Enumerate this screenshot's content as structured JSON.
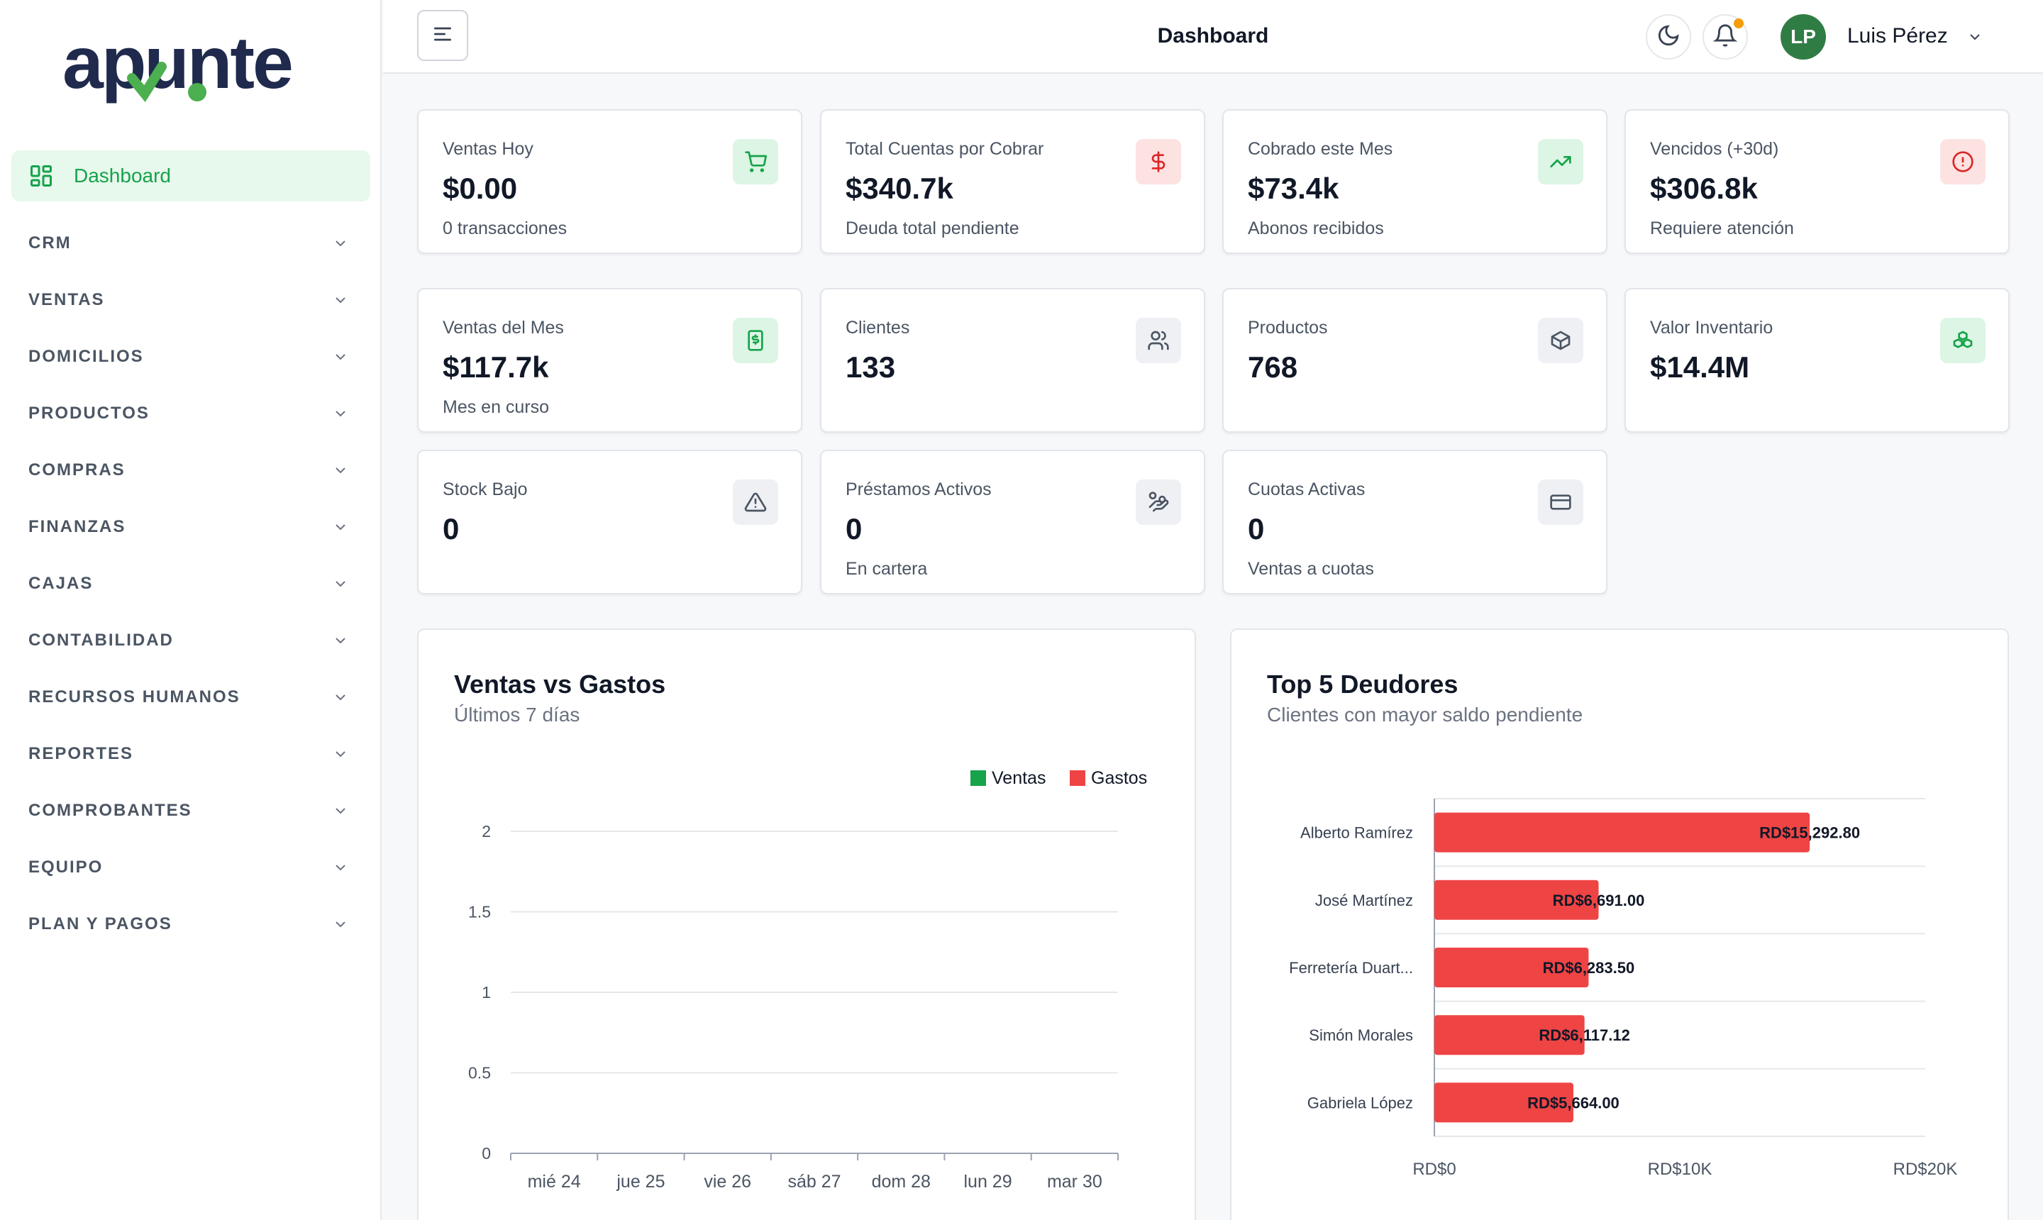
{
  "brand": {
    "logo_text": "apunte"
  },
  "sidebar": {
    "active": {
      "label": "Dashboard",
      "icon": "dashboard-grid-icon"
    },
    "items": [
      {
        "label": "CRM"
      },
      {
        "label": "VENTAS"
      },
      {
        "label": "DOMICILIOS"
      },
      {
        "label": "PRODUCTOS"
      },
      {
        "label": "COMPRAS"
      },
      {
        "label": "FINANZAS"
      },
      {
        "label": "CAJAS"
      },
      {
        "label": "CONTABILIDAD"
      },
      {
        "label": "RECURSOS HUMANOS"
      },
      {
        "label": "REPORTES"
      },
      {
        "label": "COMPROBANTES"
      },
      {
        "label": "EQUIPO"
      },
      {
        "label": "PLAN Y PAGOS"
      }
    ]
  },
  "header": {
    "title": "Dashboard",
    "user": {
      "initials": "LP",
      "name": "Luis Pérez"
    }
  },
  "stats": [
    {
      "label": "Ventas Hoy",
      "value": "$0.00",
      "sub": "0 transacciones",
      "icon": "cart-icon",
      "tone": "green"
    },
    {
      "label": "Total Cuentas por Cobrar",
      "value": "$340.7k",
      "sub": "Deuda total pendiente",
      "icon": "dollar-icon",
      "tone": "red"
    },
    {
      "label": "Cobrado este Mes",
      "value": "$73.4k",
      "sub": "Abonos recibidos",
      "icon": "trending-up-icon",
      "tone": "green"
    },
    {
      "label": "Vencidos (+30d)",
      "value": "$306.8k",
      "sub": "Requiere atención",
      "icon": "alert-circle-icon",
      "tone": "red"
    },
    {
      "label": "Ventas del Mes",
      "value": "$117.7k",
      "sub": "Mes en curso",
      "icon": "receipt-icon",
      "tone": "green"
    },
    {
      "label": "Clientes",
      "value": "133",
      "sub": "",
      "icon": "users-icon",
      "tone": "gray"
    },
    {
      "label": "Productos",
      "value": "768",
      "sub": "",
      "icon": "package-icon",
      "tone": "gray"
    },
    {
      "label": "Valor Inventario",
      "value": "$14.4M",
      "sub": "",
      "icon": "boxes-icon",
      "tone": "green"
    },
    {
      "label": "Stock Bajo",
      "value": "0",
      "sub": "",
      "icon": "warning-triangle-icon",
      "tone": "gray"
    },
    {
      "label": "Préstamos Activos",
      "value": "0",
      "sub": "En cartera",
      "icon": "hand-coins-icon",
      "tone": "gray"
    },
    {
      "label": "Cuotas Activas",
      "value": "0",
      "sub": "Ventas a cuotas",
      "icon": "credit-card-icon",
      "tone": "gray"
    }
  ],
  "panels": {
    "sales": {
      "title": "Ventas vs Gastos",
      "subtitle": "Últimos 7 días"
    },
    "debtors": {
      "title": "Top 5 Deudores",
      "subtitle": "Clientes con mayor saldo pendiente"
    }
  },
  "colors": {
    "accent": "#16a34a",
    "sales": "#16a34a",
    "expenses": "#ef4444"
  },
  "chart_data": [
    {
      "type": "bar",
      "categories": [
        "mié 24",
        "jue 25",
        "vie 26",
        "sáb 27",
        "dom 28",
        "lun 29",
        "mar 30"
      ],
      "series": [
        {
          "name": "Ventas",
          "values": [
            0,
            0,
            0,
            0,
            0,
            0,
            0
          ],
          "color": "#16a34a"
        },
        {
          "name": "Gastos",
          "values": [
            0,
            0,
            0,
            0,
            0,
            0,
            0
          ],
          "color": "#ef4444"
        }
      ],
      "yticks": [
        "0",
        "0.5",
        "1",
        "1.5",
        "2"
      ],
      "ylim": [
        0,
        2
      ],
      "grid": true,
      "legend": "top-right"
    },
    {
      "type": "bar",
      "orientation": "horizontal",
      "categories": [
        "Alberto Ramírez",
        "José Martínez",
        "Ferretería Duart...",
        "Simón Morales",
        "Gabriela López"
      ],
      "values": [
        15292.8,
        6691.0,
        6283.5,
        6117.12,
        5664.0
      ],
      "value_labels": [
        "RD$15,292.80",
        "RD$6,691.00",
        "RD$6,283.50",
        "RD$6,117.12",
        "RD$5,664.00"
      ],
      "xticks": [
        "RD$0",
        "RD$10K",
        "RD$20K"
      ],
      "xlim": [
        0,
        20000
      ],
      "color": "#ef4444",
      "grid": true
    }
  ]
}
